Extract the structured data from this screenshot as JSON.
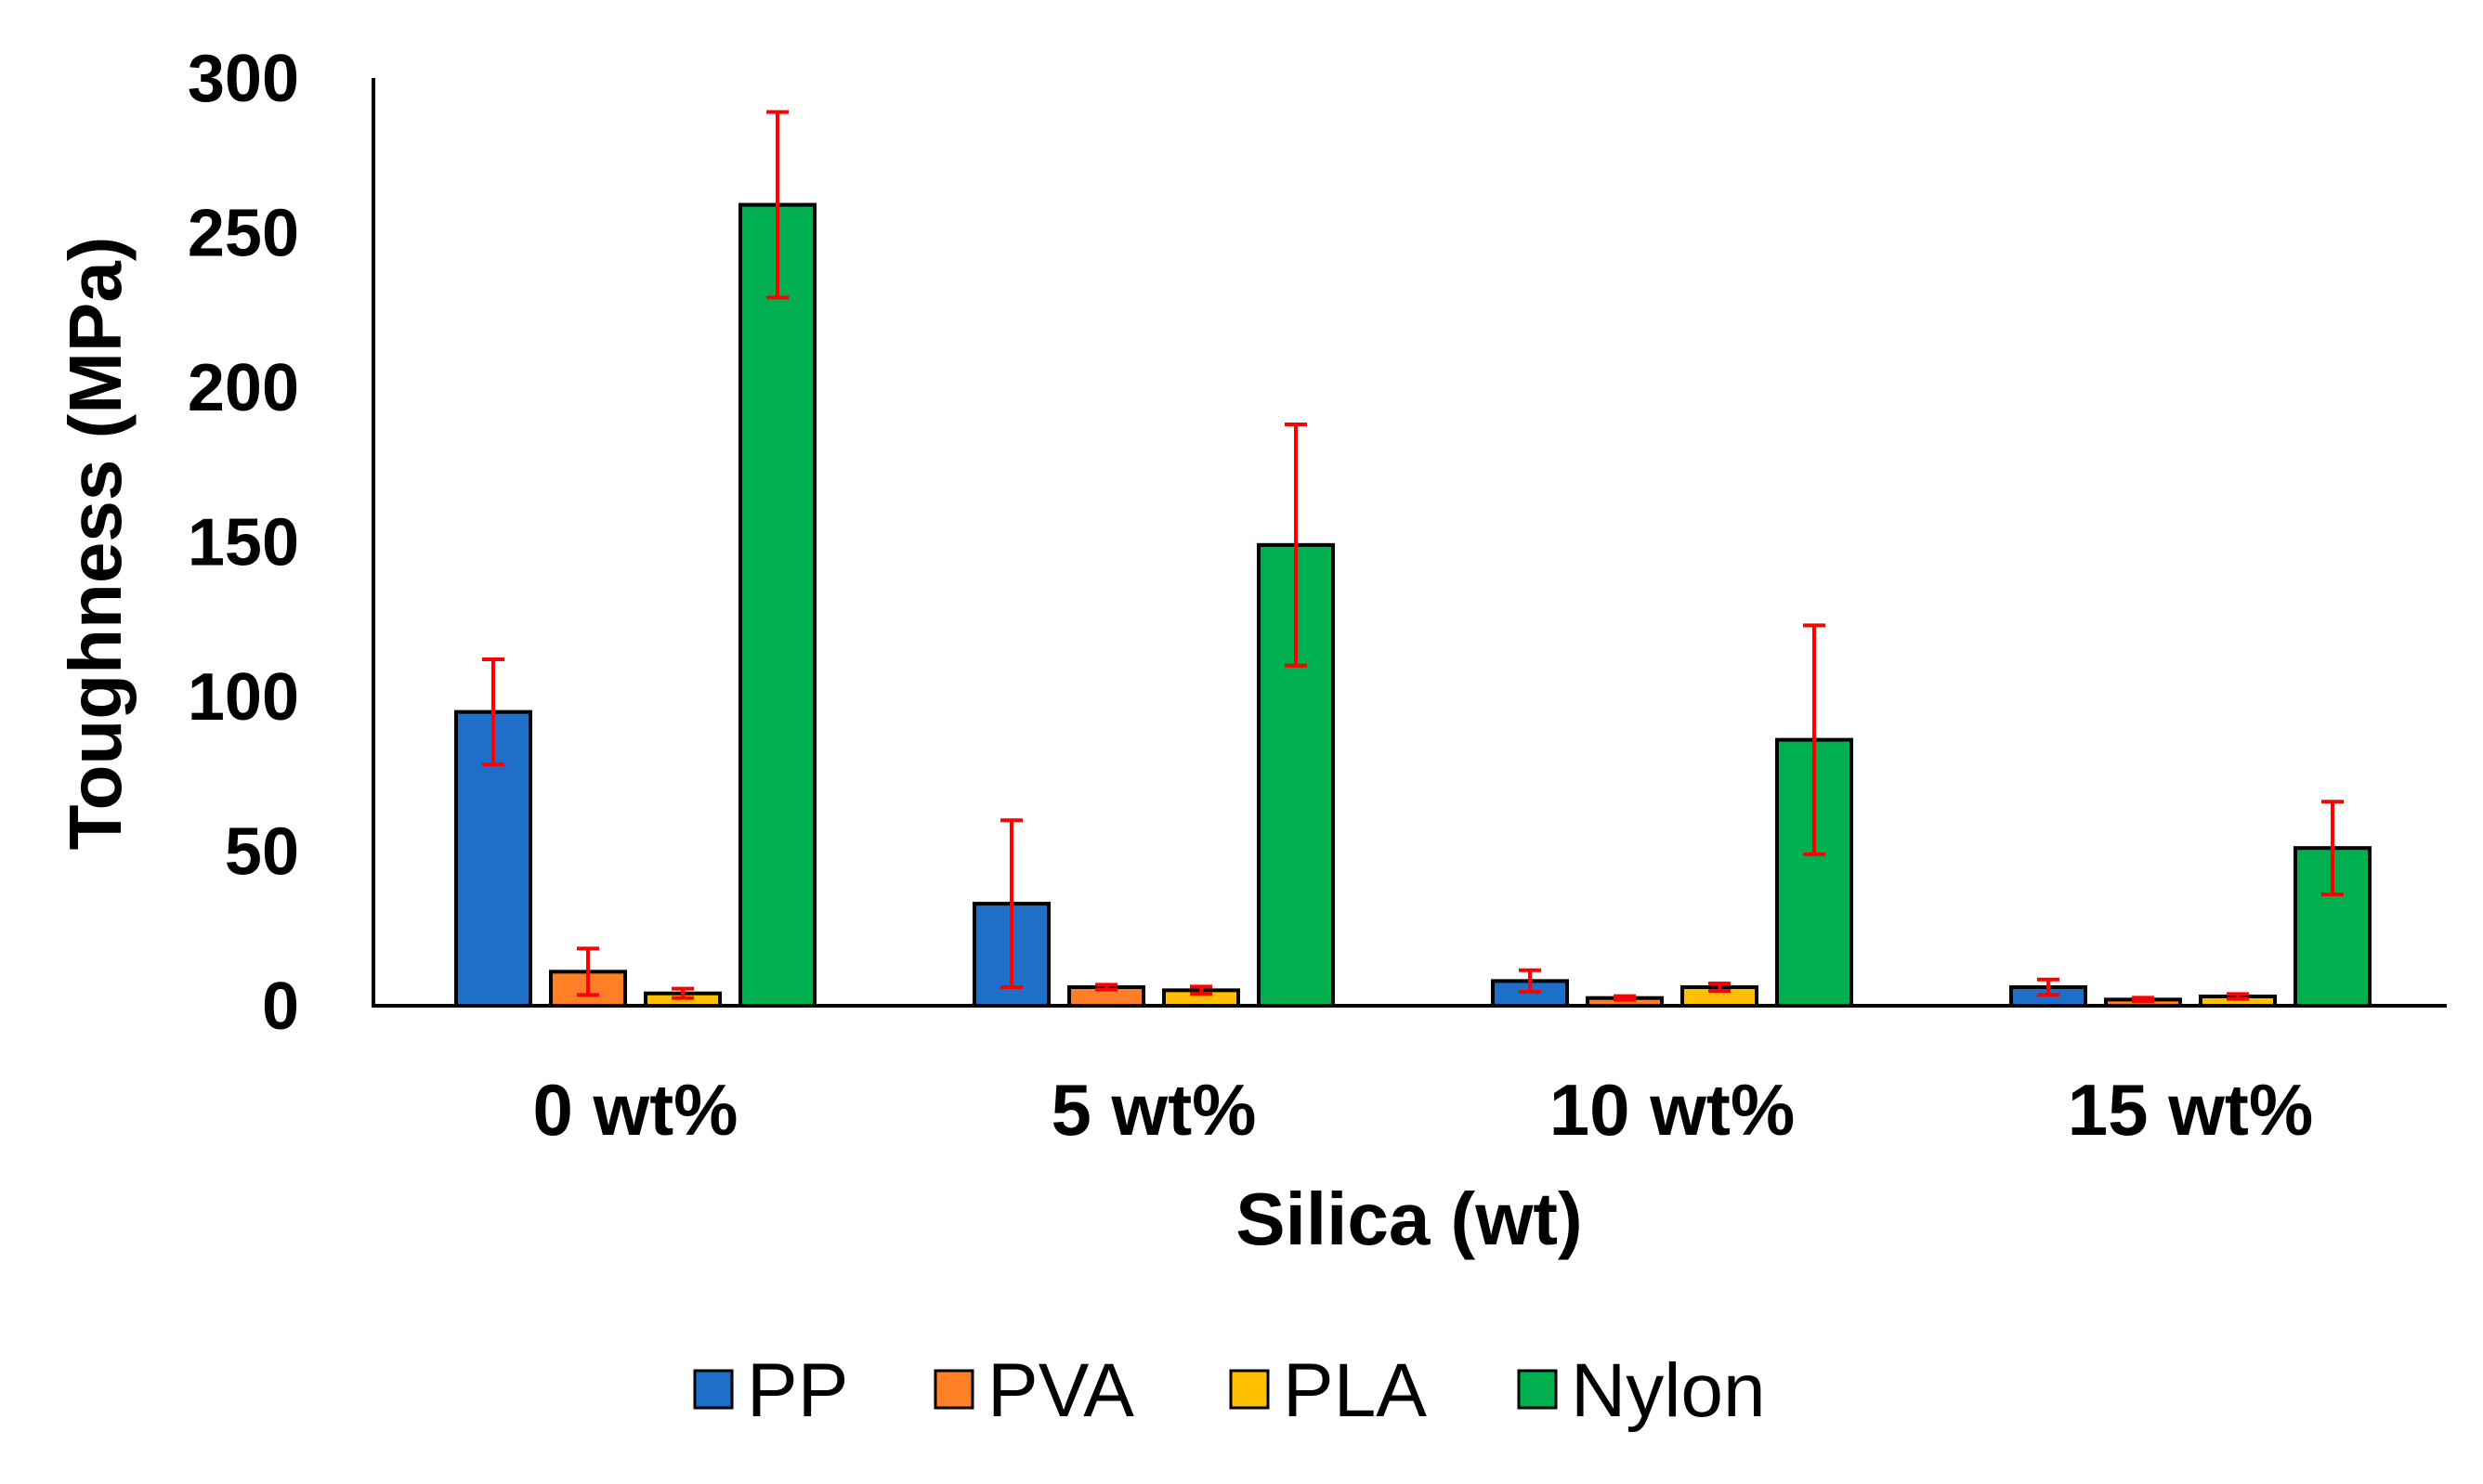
{
  "chart_data": {
    "type": "bar",
    "title": "",
    "xlabel": "Silica (wt)",
    "ylabel": "Toughness (MPa)",
    "ylim": [
      0,
      300
    ],
    "yticks": [
      "0",
      "50",
      "100",
      "150",
      "200",
      "250",
      "300"
    ],
    "categories": [
      "0 wt%",
      "5 wt%",
      "10 wt%",
      "15 wt%"
    ],
    "grid": false,
    "legend_position": "bottom",
    "error_bar_color": "#FF0000",
    "series": [
      {
        "name": "PP",
        "color": "#1F6FC9",
        "values": [
          95,
          33,
          8,
          6
        ],
        "errors": [
          17,
          27,
          3.5,
          2.5
        ]
      },
      {
        "name": "PVA",
        "color": "#FF7F27",
        "values": [
          11,
          6,
          2.5,
          2
        ],
        "errors": [
          7.5,
          0.8,
          0.6,
          0.6
        ]
      },
      {
        "name": "PLA",
        "color": "#FFC000",
        "values": [
          4,
          5,
          6,
          3
        ],
        "errors": [
          1.5,
          1.2,
          1.2,
          0.8
        ]
      },
      {
        "name": "Nylon",
        "color": "#00B050",
        "values": [
          259,
          149,
          86,
          51
        ],
        "errors": [
          30,
          39,
          37,
          15
        ]
      }
    ]
  }
}
